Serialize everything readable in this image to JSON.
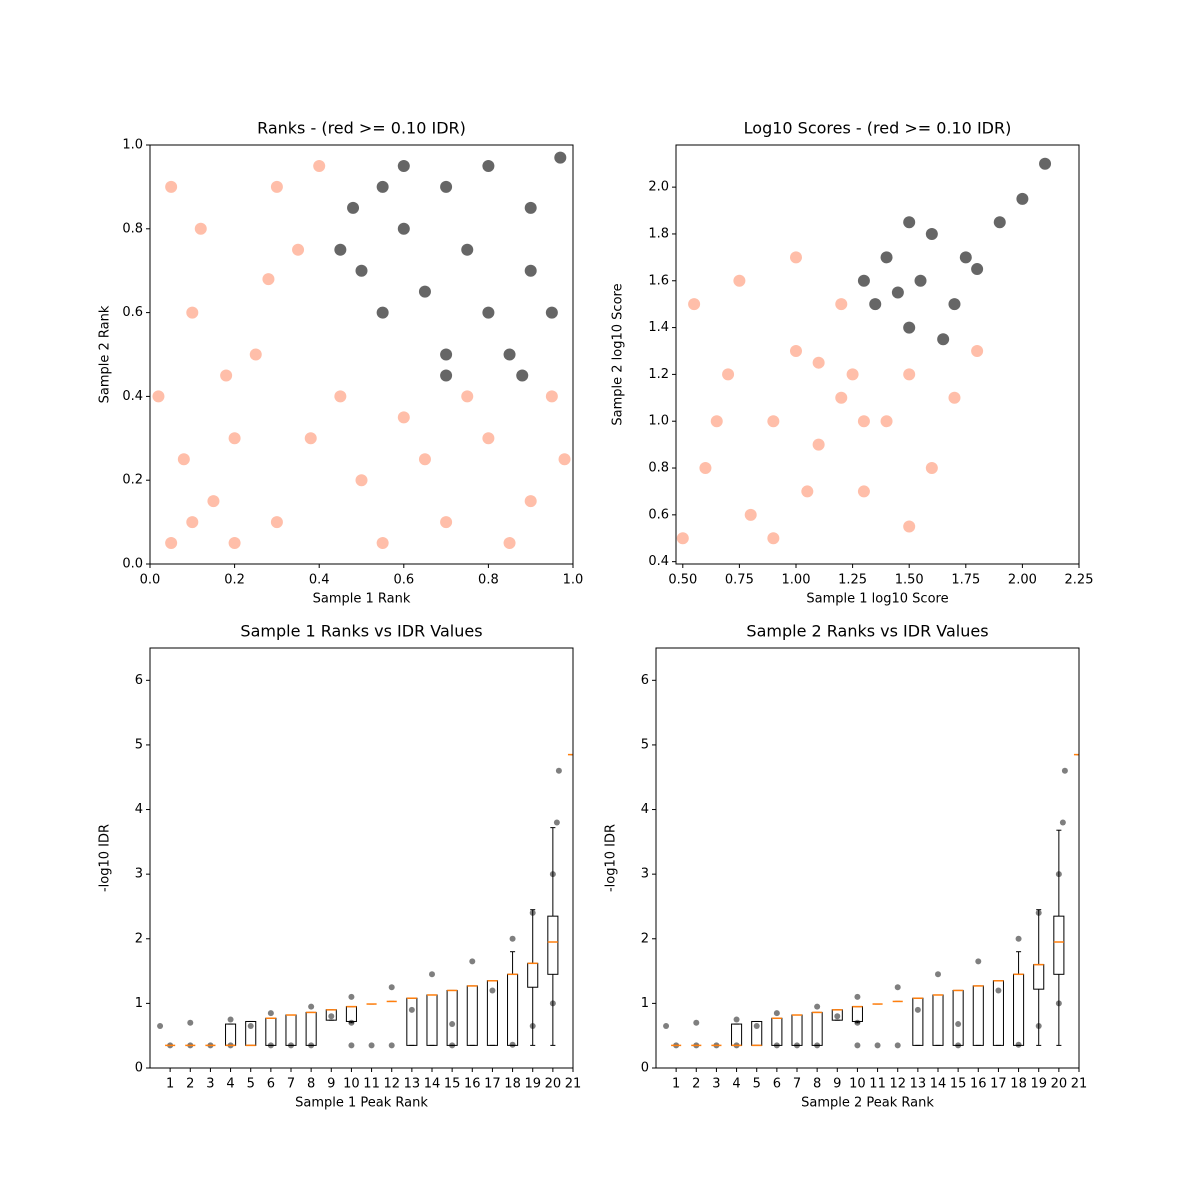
{
  "chart_data": [
    {
      "type": "scatter",
      "title": "Ranks - (red >= 0.10 IDR)",
      "xlabel": "Sample 1 Rank",
      "ylabel": "Sample 2 Rank",
      "xlim": [
        0,
        1
      ],
      "ylim": [
        0,
        1
      ],
      "xticks": [
        {
          "value": 0,
          "label": "0.0"
        },
        0.2,
        0.4,
        0.6,
        0.8,
        {
          "value": 1,
          "label": "1.0"
        }
      ],
      "yticks": [
        {
          "value": 0,
          "label": "0.0"
        },
        0.2,
        0.4,
        0.6,
        0.8,
        {
          "value": 1,
          "label": "1.0"
        }
      ],
      "series": [
        {
          "color": "#ff9270",
          "x": [
            0.05,
            0.1,
            0.2,
            0.3,
            0.05,
            0.15,
            0.25,
            0.35,
            0.4,
            0.5,
            0.6,
            0.7,
            0.8,
            0.9,
            0.95,
            0.02,
            0.12,
            0.3,
            0.45,
            0.55,
            0.65,
            0.85,
            0.98,
            0.2,
            0.08,
            0.38,
            0.28,
            0.18,
            0.75,
            0.1
          ],
          "y": [
            0.9,
            0.6,
            0.3,
            0.1,
            0.05,
            0.15,
            0.5,
            0.75,
            0.95,
            0.2,
            0.35,
            0.1,
            0.3,
            0.15,
            0.4,
            0.4,
            0.8,
            0.9,
            0.4,
            0.05,
            0.25,
            0.05,
            0.25,
            0.05,
            0.25,
            0.3,
            0.68,
            0.45,
            0.4,
            0.1
          ]
        },
        {
          "color": "#000000",
          "x": [
            0.5,
            0.6,
            0.7,
            0.8,
            0.9,
            0.95,
            0.85,
            0.7,
            0.55,
            0.48,
            0.65,
            0.75,
            0.9,
            0.6,
            0.8,
            0.97,
            0.45,
            0.7,
            0.88,
            0.55
          ],
          "y": [
            0.7,
            0.8,
            0.9,
            0.95,
            0.85,
            0.6,
            0.5,
            0.5,
            0.6,
            0.85,
            0.65,
            0.75,
            0.7,
            0.95,
            0.6,
            0.97,
            0.75,
            0.45,
            0.45,
            0.9
          ]
        }
      ]
    },
    {
      "type": "scatter",
      "title": "Log10 Scores - (red >= 0.10 IDR)",
      "xlabel": "Sample 1 log10 Score",
      "ylabel": "Sample 2 log10 Score",
      "xlim": [
        0.47,
        2.25
      ],
      "ylim": [
        0.39,
        2.18
      ],
      "xticks": [
        {
          "value": 0.5,
          "label": "0.50"
        },
        0.75,
        {
          "value": 1,
          "label": "1.00"
        },
        1.25,
        {
          "value": 1.5,
          "label": "1.50"
        },
        1.75,
        {
          "value": 2,
          "label": "2.00"
        },
        2.25
      ],
      "yticks": [
        0.4,
        0.6,
        0.8,
        {
          "value": 1,
          "label": "1.0"
        },
        1.2,
        1.4,
        1.6,
        1.8,
        {
          "value": 2,
          "label": "2.0"
        }
      ],
      "series": [
        {
          "color": "#ff9270",
          "x": [
            0.5,
            0.6,
            0.7,
            0.8,
            0.9,
            1.0,
            1.1,
            1.2,
            1.3,
            1.4,
            1.5,
            1.6,
            1.7,
            0.55,
            0.75,
            1.0,
            1.2,
            0.9,
            1.5,
            1.8,
            1.1,
            1.25,
            1.3,
            0.65,
            1.05
          ],
          "y": [
            0.5,
            0.8,
            1.2,
            0.6,
            1.0,
            1.3,
            0.9,
            1.1,
            0.7,
            1.0,
            1.2,
            0.8,
            1.1,
            1.5,
            1.6,
            1.7,
            1.5,
            0.5,
            0.55,
            1.3,
            1.25,
            1.2,
            1.0,
            1.0,
            0.7
          ]
        },
        {
          "color": "#000000",
          "x": [
            1.35,
            1.4,
            1.5,
            1.55,
            1.6,
            1.7,
            1.65,
            1.45,
            1.75,
            1.8,
            1.9,
            2.0,
            2.1,
            1.5,
            1.3
          ],
          "y": [
            1.5,
            1.7,
            1.4,
            1.6,
            1.8,
            1.5,
            1.35,
            1.55,
            1.7,
            1.65,
            1.85,
            1.95,
            2.1,
            1.85,
            1.6
          ]
        }
      ]
    },
    {
      "type": "box",
      "title": "Sample 1 Ranks vs IDR Values",
      "xlabel": "Sample 1 Peak Rank",
      "ylabel": "-log10 IDR",
      "xlim": [
        0,
        21
      ],
      "ylim": [
        0,
        6.5
      ],
      "xticks": [
        1,
        2,
        3,
        4,
        5,
        6,
        7,
        8,
        9,
        10,
        11,
        12,
        13,
        14,
        15,
        16,
        17,
        18,
        19,
        20,
        21
      ],
      "yticks": [
        0,
        1,
        2,
        3,
        4,
        5,
        6
      ],
      "points": {
        "color": "#000000",
        "x": [
          0.5,
          2,
          4,
          6,
          8,
          10,
          12,
          14,
          16,
          18,
          19,
          20,
          20.2,
          20.3,
          5,
          10,
          15,
          19,
          20,
          3,
          7,
          11,
          15,
          18,
          13,
          17,
          9,
          1,
          2,
          4,
          6,
          8,
          10,
          12
        ],
        "y": [
          0.65,
          0.7,
          0.75,
          0.85,
          0.95,
          1.1,
          1.25,
          1.45,
          1.65,
          2.0,
          2.4,
          3.0,
          3.8,
          4.6,
          0.65,
          0.7,
          0.68,
          0.65,
          1.0,
          0.35,
          0.35,
          0.35,
          0.35,
          0.36,
          0.9,
          1.2,
          0.8,
          0.35,
          0.35,
          0.35,
          0.35,
          0.35,
          0.35,
          0.35
        ]
      },
      "boxes": [
        {
          "q1": 0.35,
          "median": 0.35,
          "q3": 0.35,
          "whislo": 0.35,
          "whishi": 0.35
        },
        {
          "q1": 0.35,
          "median": 0.35,
          "q3": 0.35,
          "whislo": 0.35,
          "whishi": 0.35
        },
        {
          "q1": 0.35,
          "median": 0.35,
          "q3": 0.35,
          "whislo": 0.35,
          "whishi": 0.35
        },
        {
          "q1": 0.35,
          "median": 0.35,
          "q3": 0.68,
          "whislo": 0.35,
          "whishi": 0.68
        },
        {
          "q1": 0.35,
          "median": 0.35,
          "q3": 0.72,
          "whislo": 0.35,
          "whishi": 0.72
        },
        {
          "q1": 0.35,
          "median": 0.77,
          "q3": 0.77,
          "whislo": 0.35,
          "whishi": 0.77
        },
        {
          "q1": 0.35,
          "median": 0.82,
          "q3": 0.82,
          "whislo": 0.35,
          "whishi": 0.82
        },
        {
          "q1": 0.35,
          "median": 0.86,
          "q3": 0.86,
          "whislo": 0.35,
          "whishi": 0.86
        },
        {
          "q1": 0.74,
          "median": 0.9,
          "q3": 0.9,
          "whislo": 0.74,
          "whishi": 0.9
        },
        {
          "q1": 0.72,
          "median": 0.95,
          "q3": 0.95,
          "whislo": 0.7,
          "whishi": 0.95
        },
        {
          "q1": 0.99,
          "median": 0.99,
          "q3": 0.99,
          "whislo": 0.99,
          "whishi": 0.99
        },
        {
          "q1": 1.03,
          "median": 1.03,
          "q3": 1.03,
          "whislo": 1.03,
          "whishi": 1.03
        },
        {
          "q1": 0.35,
          "median": 1.08,
          "q3": 1.08,
          "whislo": 0.35,
          "whishi": 1.08
        },
        {
          "q1": 0.35,
          "median": 1.13,
          "q3": 1.13,
          "whislo": 0.35,
          "whishi": 1.13
        },
        {
          "q1": 0.35,
          "median": 1.2,
          "q3": 1.2,
          "whislo": 0.35,
          "whishi": 1.2
        },
        {
          "q1": 0.35,
          "median": 1.27,
          "q3": 1.27,
          "whislo": 0.35,
          "whishi": 1.27
        },
        {
          "q1": 0.35,
          "median": 1.35,
          "q3": 1.35,
          "whislo": 0.35,
          "whishi": 1.35
        },
        {
          "q1": 0.35,
          "median": 1.45,
          "q3": 1.45,
          "whislo": 0.35,
          "whishi": 1.8
        },
        {
          "q1": 1.25,
          "median": 1.62,
          "q3": 1.62,
          "whislo": 0.35,
          "whishi": 2.45
        },
        {
          "q1": 1.45,
          "median": 1.95,
          "q3": 2.35,
          "whislo": 0.35,
          "whishi": 3.72
        },
        {
          "q1": 4.85,
          "median": 4.85,
          "q3": 4.85,
          "whislo": 4.85,
          "whishi": 4.85
        }
      ]
    },
    {
      "type": "box",
      "title": "Sample 2 Ranks vs IDR Values",
      "xlabel": "Sample 2 Peak Rank",
      "ylabel": "-log10 IDR",
      "xlim": [
        0,
        21
      ],
      "ylim": [
        0,
        6.5
      ],
      "xticks": [
        1,
        2,
        3,
        4,
        5,
        6,
        7,
        8,
        9,
        10,
        11,
        12,
        13,
        14,
        15,
        16,
        17,
        18,
        19,
        20,
        21
      ],
      "yticks": [
        0,
        1,
        2,
        3,
        4,
        5,
        6
      ],
      "points": {
        "color": "#000000",
        "x": [
          0.5,
          2,
          4,
          6,
          8,
          10,
          12,
          14,
          16,
          18,
          19,
          20,
          20.2,
          20.3,
          5,
          10,
          15,
          19,
          20,
          3,
          7,
          11,
          15,
          18,
          13,
          17,
          9,
          1,
          2,
          4,
          6,
          8,
          10,
          12
        ],
        "y": [
          0.65,
          0.7,
          0.75,
          0.85,
          0.95,
          1.1,
          1.25,
          1.45,
          1.65,
          2.0,
          2.4,
          3.0,
          3.8,
          4.6,
          0.65,
          0.7,
          0.68,
          0.65,
          1.0,
          0.35,
          0.35,
          0.35,
          0.35,
          0.36,
          0.9,
          1.2,
          0.8,
          0.35,
          0.35,
          0.35,
          0.35,
          0.35,
          0.35,
          0.35
        ]
      },
      "boxes": [
        {
          "q1": 0.35,
          "median": 0.35,
          "q3": 0.35,
          "whislo": 0.35,
          "whishi": 0.35
        },
        {
          "q1": 0.35,
          "median": 0.35,
          "q3": 0.35,
          "whislo": 0.35,
          "whishi": 0.35
        },
        {
          "q1": 0.35,
          "median": 0.35,
          "q3": 0.35,
          "whislo": 0.35,
          "whishi": 0.35
        },
        {
          "q1": 0.35,
          "median": 0.35,
          "q3": 0.68,
          "whislo": 0.35,
          "whishi": 0.68
        },
        {
          "q1": 0.35,
          "median": 0.35,
          "q3": 0.72,
          "whislo": 0.35,
          "whishi": 0.72
        },
        {
          "q1": 0.35,
          "median": 0.77,
          "q3": 0.77,
          "whislo": 0.35,
          "whishi": 0.77
        },
        {
          "q1": 0.35,
          "median": 0.82,
          "q3": 0.82,
          "whislo": 0.35,
          "whishi": 0.82
        },
        {
          "q1": 0.35,
          "median": 0.86,
          "q3": 0.86,
          "whislo": 0.35,
          "whishi": 0.86
        },
        {
          "q1": 0.74,
          "median": 0.9,
          "q3": 0.9,
          "whislo": 0.74,
          "whishi": 0.9
        },
        {
          "q1": 0.72,
          "median": 0.95,
          "q3": 0.95,
          "whislo": 0.7,
          "whishi": 0.95
        },
        {
          "q1": 0.99,
          "median": 0.99,
          "q3": 0.99,
          "whislo": 0.99,
          "whishi": 0.99
        },
        {
          "q1": 1.03,
          "median": 1.03,
          "q3": 1.03,
          "whislo": 1.03,
          "whishi": 1.03
        },
        {
          "q1": 0.35,
          "median": 1.08,
          "q3": 1.08,
          "whislo": 0.35,
          "whishi": 1.08
        },
        {
          "q1": 0.35,
          "median": 1.13,
          "q3": 1.13,
          "whislo": 0.35,
          "whishi": 1.13
        },
        {
          "q1": 0.35,
          "median": 1.2,
          "q3": 1.2,
          "whislo": 0.35,
          "whishi": 1.2
        },
        {
          "q1": 0.35,
          "median": 1.27,
          "q3": 1.27,
          "whislo": 0.35,
          "whishi": 1.27
        },
        {
          "q1": 0.35,
          "median": 1.35,
          "q3": 1.35,
          "whislo": 0.35,
          "whishi": 1.35
        },
        {
          "q1": 0.35,
          "median": 1.45,
          "q3": 1.45,
          "whislo": 0.35,
          "whishi": 1.8
        },
        {
          "q1": 1.22,
          "median": 1.6,
          "q3": 1.6,
          "whislo": 0.35,
          "whishi": 2.45
        },
        {
          "q1": 1.45,
          "median": 1.95,
          "q3": 2.35,
          "whislo": 0.35,
          "whishi": 3.68
        },
        {
          "q1": 4.85,
          "median": 4.85,
          "q3": 4.85,
          "whislo": 4.85,
          "whishi": 4.85
        }
      ]
    }
  ]
}
